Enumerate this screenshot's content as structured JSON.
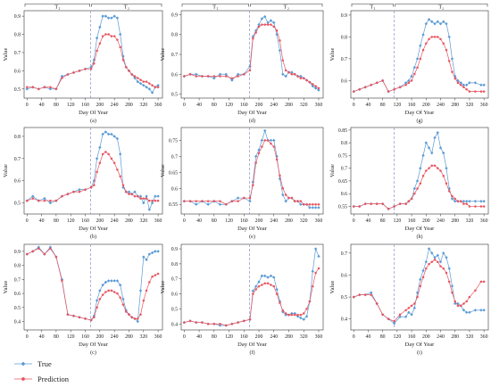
{
  "legend": {
    "true_label": "True",
    "prediction_label": "Prediction"
  },
  "colors": {
    "true": "#5b9bd5",
    "prediction": "#e8545f",
    "divider": "#8a93c8",
    "axis": "#333333"
  },
  "common": {
    "xlabel": "Day Of Year",
    "ylabel": "Value",
    "xticks": [
      0,
      40,
      80,
      120,
      160,
      200,
      240,
      280,
      320,
      360
    ],
    "xlim": [
      -8,
      372
    ],
    "phase1_label": "T₁",
    "phase2_label": "T₂"
  },
  "chart_data": [
    {
      "type": "line",
      "caption": "(a)",
      "divider": 175,
      "ylim": [
        0.45,
        0.93
      ],
      "yticks": [
        0.5,
        0.6,
        0.7,
        0.8,
        0.9
      ],
      "x": [
        0,
        16,
        32,
        48,
        64,
        80,
        96,
        112,
        128,
        144,
        160,
        176,
        184,
        192,
        200,
        208,
        216,
        224,
        232,
        240,
        248,
        256,
        264,
        272,
        280,
        288,
        296,
        304,
        312,
        320,
        328,
        336,
        344,
        352,
        360
      ],
      "series": [
        {
          "name": "True",
          "values": [
            0.5,
            0.51,
            0.5,
            0.51,
            0.5,
            0.5,
            0.57,
            0.58,
            0.59,
            0.6,
            0.61,
            0.62,
            0.66,
            0.78,
            0.84,
            0.9,
            0.9,
            0.89,
            0.89,
            0.9,
            0.89,
            0.8,
            0.68,
            0.62,
            0.6,
            0.58,
            0.56,
            0.54,
            0.53,
            0.52,
            0.51,
            0.5,
            0.48,
            0.51,
            0.52
          ]
        },
        {
          "name": "Prediction",
          "values": [
            0.51,
            0.51,
            0.5,
            0.51,
            0.51,
            0.5,
            0.56,
            0.58,
            0.59,
            0.6,
            0.61,
            0.61,
            0.64,
            0.71,
            0.75,
            0.79,
            0.8,
            0.8,
            0.79,
            0.79,
            0.77,
            0.73,
            0.66,
            0.62,
            0.6,
            0.58,
            0.57,
            0.56,
            0.55,
            0.54,
            0.54,
            0.53,
            0.52,
            0.51,
            0.51
          ]
        }
      ]
    },
    {
      "type": "line",
      "caption": "(d)",
      "divider": 175,
      "ylim": [
        0.48,
        0.92
      ],
      "yticks": [
        0.5,
        0.6,
        0.7,
        0.8,
        0.9
      ],
      "x": [
        0,
        16,
        32,
        48,
        64,
        80,
        96,
        112,
        128,
        144,
        160,
        176,
        184,
        192,
        200,
        208,
        216,
        224,
        232,
        240,
        248,
        256,
        264,
        272,
        280,
        288,
        296,
        304,
        312,
        320,
        328,
        336,
        344,
        352,
        360
      ],
      "series": [
        {
          "name": "True",
          "values": [
            0.59,
            0.6,
            0.6,
            0.59,
            0.59,
            0.58,
            0.6,
            0.6,
            0.57,
            0.6,
            0.6,
            0.64,
            0.79,
            0.82,
            0.85,
            0.88,
            0.89,
            0.86,
            0.87,
            0.86,
            0.8,
            0.72,
            0.6,
            0.59,
            0.61,
            0.61,
            0.6,
            0.59,
            0.59,
            0.58,
            0.57,
            0.56,
            0.54,
            0.53,
            0.52
          ]
        },
        {
          "name": "Prediction",
          "values": [
            0.59,
            0.6,
            0.59,
            0.59,
            0.59,
            0.59,
            0.59,
            0.59,
            0.58,
            0.59,
            0.6,
            0.62,
            0.78,
            0.81,
            0.84,
            0.85,
            0.85,
            0.85,
            0.85,
            0.84,
            0.82,
            0.77,
            0.67,
            0.62,
            0.61,
            0.6,
            0.6,
            0.59,
            0.58,
            0.58,
            0.57,
            0.56,
            0.55,
            0.54,
            0.53
          ]
        }
      ]
    },
    {
      "type": "line",
      "caption": "(g)",
      "divider": 112,
      "ylim": [
        0.52,
        0.92
      ],
      "yticks": [
        0.6,
        0.7,
        0.8,
        0.9
      ],
      "x": [
        0,
        16,
        32,
        48,
        64,
        80,
        96,
        112,
        128,
        144,
        152,
        160,
        168,
        176,
        184,
        192,
        200,
        208,
        216,
        224,
        232,
        240,
        248,
        256,
        264,
        272,
        280,
        288,
        296,
        304,
        312,
        320,
        336,
        352,
        360
      ],
      "series": [
        {
          "name": "True",
          "values": [
            0.55,
            0.56,
            0.57,
            0.58,
            0.59,
            0.6,
            0.55,
            0.56,
            0.57,
            0.59,
            0.6,
            0.62,
            0.66,
            0.7,
            0.76,
            0.81,
            0.86,
            0.88,
            0.87,
            0.86,
            0.87,
            0.86,
            0.87,
            0.86,
            0.8,
            0.7,
            0.62,
            0.6,
            0.59,
            0.58,
            0.58,
            0.59,
            0.59,
            0.58,
            0.58
          ]
        },
        {
          "name": "Prediction",
          "values": [
            0.55,
            0.56,
            0.57,
            0.58,
            0.59,
            0.6,
            0.55,
            0.56,
            0.57,
            0.58,
            0.59,
            0.6,
            0.63,
            0.66,
            0.7,
            0.74,
            0.77,
            0.79,
            0.8,
            0.8,
            0.8,
            0.79,
            0.77,
            0.74,
            0.69,
            0.64,
            0.61,
            0.59,
            0.58,
            0.57,
            0.56,
            0.55,
            0.55,
            0.55,
            0.55
          ]
        }
      ]
    },
    {
      "type": "line",
      "caption": "(b)",
      "divider": 175,
      "ylim": [
        0.45,
        0.84
      ],
      "yticks": [
        0.5,
        0.6,
        0.7,
        0.8
      ],
      "x": [
        0,
        16,
        32,
        48,
        64,
        80,
        96,
        112,
        128,
        144,
        160,
        176,
        184,
        192,
        200,
        208,
        216,
        224,
        232,
        240,
        248,
        256,
        264,
        272,
        280,
        288,
        296,
        304,
        312,
        320,
        328,
        336,
        344,
        352,
        360
      ],
      "series": [
        {
          "name": "True",
          "values": [
            0.51,
            0.53,
            0.51,
            0.52,
            0.5,
            0.51,
            0.53,
            0.54,
            0.55,
            0.56,
            0.56,
            0.57,
            0.6,
            0.7,
            0.75,
            0.81,
            0.82,
            0.81,
            0.81,
            0.8,
            0.79,
            0.72,
            0.57,
            0.55,
            0.55,
            0.54,
            0.55,
            0.53,
            0.53,
            0.5,
            0.53,
            0.47,
            0.5,
            0.53,
            0.53
          ]
        },
        {
          "name": "Prediction",
          "values": [
            0.51,
            0.52,
            0.51,
            0.51,
            0.51,
            0.51,
            0.53,
            0.54,
            0.55,
            0.55,
            0.56,
            0.57,
            0.58,
            0.64,
            0.68,
            0.72,
            0.73,
            0.72,
            0.7,
            0.68,
            0.65,
            0.62,
            0.58,
            0.55,
            0.54,
            0.54,
            0.53,
            0.53,
            0.52,
            0.52,
            0.52,
            0.51,
            0.51,
            0.51,
            0.51
          ]
        }
      ]
    },
    {
      "type": "line",
      "caption": "(e)",
      "divider": 175,
      "ylim": [
        0.52,
        0.79
      ],
      "yticks": [
        0.55,
        0.6,
        0.65,
        0.7,
        0.75
      ],
      "x": [
        0,
        16,
        32,
        48,
        64,
        80,
        96,
        112,
        128,
        144,
        160,
        176,
        184,
        192,
        200,
        208,
        216,
        224,
        232,
        240,
        248,
        256,
        264,
        272,
        280,
        288,
        296,
        304,
        312,
        320,
        328,
        336,
        344,
        352,
        360
      ],
      "series": [
        {
          "name": "True",
          "values": [
            0.56,
            0.56,
            0.55,
            0.56,
            0.55,
            0.56,
            0.55,
            0.55,
            0.56,
            0.57,
            0.57,
            0.56,
            0.62,
            0.7,
            0.72,
            0.75,
            0.78,
            0.75,
            0.75,
            0.75,
            0.7,
            0.63,
            0.58,
            0.56,
            0.57,
            0.57,
            0.56,
            0.56,
            0.55,
            0.55,
            0.55,
            0.54,
            0.54,
            0.54,
            0.54
          ]
        },
        {
          "name": "Prediction",
          "values": [
            0.56,
            0.56,
            0.56,
            0.56,
            0.56,
            0.56,
            0.56,
            0.55,
            0.56,
            0.56,
            0.57,
            0.57,
            0.61,
            0.68,
            0.71,
            0.73,
            0.75,
            0.75,
            0.74,
            0.73,
            0.69,
            0.64,
            0.6,
            0.58,
            0.57,
            0.57,
            0.56,
            0.56,
            0.56,
            0.55,
            0.55,
            0.55,
            0.55,
            0.55,
            0.55
          ]
        }
      ]
    },
    {
      "type": "line",
      "caption": "(h)",
      "divider": 112,
      "ylim": [
        0.52,
        0.86
      ],
      "yticks": [
        0.55,
        0.6,
        0.65,
        0.7,
        0.75,
        0.8,
        0.85
      ],
      "x": [
        0,
        16,
        32,
        48,
        64,
        80,
        96,
        112,
        128,
        144,
        152,
        160,
        168,
        176,
        184,
        192,
        200,
        208,
        216,
        224,
        232,
        240,
        248,
        256,
        264,
        272,
        280,
        288,
        296,
        304,
        312,
        320,
        336,
        352,
        360
      ],
      "series": [
        {
          "name": "True",
          "values": [
            0.55,
            0.55,
            0.56,
            0.56,
            0.56,
            0.56,
            0.54,
            0.55,
            0.56,
            0.56,
            0.57,
            0.58,
            0.62,
            0.65,
            0.7,
            0.75,
            0.8,
            0.78,
            0.76,
            0.82,
            0.84,
            0.78,
            0.76,
            0.7,
            0.62,
            0.58,
            0.57,
            0.57,
            0.57,
            0.57,
            0.57,
            0.57,
            0.57,
            0.57,
            0.57
          ]
        },
        {
          "name": "Prediction",
          "values": [
            0.55,
            0.55,
            0.56,
            0.56,
            0.56,
            0.56,
            0.54,
            0.55,
            0.56,
            0.56,
            0.57,
            0.58,
            0.6,
            0.62,
            0.64,
            0.67,
            0.69,
            0.7,
            0.71,
            0.71,
            0.7,
            0.69,
            0.67,
            0.64,
            0.61,
            0.59,
            0.58,
            0.57,
            0.57,
            0.56,
            0.56,
            0.55,
            0.55,
            0.55,
            0.55
          ]
        }
      ]
    },
    {
      "type": "line",
      "caption": "(c)",
      "divider": 175,
      "ylim": [
        0.34,
        0.95
      ],
      "yticks": [
        0.4,
        0.5,
        0.6,
        0.7,
        0.8,
        0.9
      ],
      "x": [
        0,
        16,
        32,
        48,
        64,
        80,
        96,
        112,
        128,
        144,
        160,
        176,
        184,
        192,
        200,
        208,
        216,
        224,
        232,
        240,
        248,
        256,
        264,
        272,
        280,
        288,
        296,
        304,
        312,
        320,
        328,
        336,
        344,
        352,
        360
      ],
      "series": [
        {
          "name": "True",
          "values": [
            0.88,
            0.9,
            0.93,
            0.88,
            0.93,
            0.86,
            0.7,
            0.45,
            0.44,
            0.43,
            0.42,
            0.41,
            0.44,
            0.55,
            0.62,
            0.66,
            0.68,
            0.69,
            0.69,
            0.69,
            0.69,
            0.66,
            0.56,
            0.48,
            0.45,
            0.43,
            0.42,
            0.4,
            0.62,
            0.86,
            0.84,
            0.88,
            0.89,
            0.9,
            0.9
          ]
        },
        {
          "name": "Prediction",
          "values": [
            0.88,
            0.9,
            0.92,
            0.88,
            0.92,
            0.86,
            0.69,
            0.45,
            0.44,
            0.43,
            0.42,
            0.41,
            0.43,
            0.5,
            0.56,
            0.59,
            0.61,
            0.62,
            0.62,
            0.61,
            0.6,
            0.57,
            0.52,
            0.47,
            0.45,
            0.43,
            0.42,
            0.42,
            0.45,
            0.55,
            0.62,
            0.68,
            0.72,
            0.73,
            0.74
          ]
        }
      ]
    },
    {
      "type": "line",
      "caption": "(f)",
      "divider": 175,
      "ylim": [
        0.36,
        0.93
      ],
      "yticks": [
        0.4,
        0.5,
        0.6,
        0.7,
        0.8,
        0.9
      ],
      "x": [
        0,
        16,
        32,
        48,
        64,
        80,
        96,
        112,
        128,
        144,
        160,
        176,
        184,
        192,
        200,
        208,
        216,
        224,
        232,
        240,
        248,
        256,
        264,
        272,
        280,
        288,
        296,
        304,
        312,
        320,
        328,
        336,
        344,
        352,
        360
      ],
      "series": [
        {
          "name": "True",
          "values": [
            0.41,
            0.42,
            0.41,
            0.41,
            0.4,
            0.4,
            0.39,
            0.39,
            0.4,
            0.41,
            0.42,
            0.43,
            0.62,
            0.65,
            0.68,
            0.72,
            0.72,
            0.71,
            0.72,
            0.71,
            0.63,
            0.55,
            0.48,
            0.46,
            0.46,
            0.47,
            0.47,
            0.45,
            0.44,
            0.43,
            0.45,
            0.55,
            0.75,
            0.9,
            0.85
          ]
        },
        {
          "name": "Prediction",
          "values": [
            0.41,
            0.42,
            0.41,
            0.41,
            0.4,
            0.4,
            0.4,
            0.39,
            0.4,
            0.41,
            0.42,
            0.43,
            0.6,
            0.63,
            0.65,
            0.66,
            0.67,
            0.67,
            0.66,
            0.65,
            0.6,
            0.54,
            0.49,
            0.47,
            0.46,
            0.46,
            0.46,
            0.46,
            0.46,
            0.47,
            0.5,
            0.55,
            0.65,
            0.74,
            0.77
          ]
        }
      ]
    },
    {
      "type": "line",
      "caption": "(i)",
      "divider": 112,
      "ylim": [
        0.35,
        0.74
      ],
      "yticks": [
        0.4,
        0.5,
        0.6,
        0.7
      ],
      "x": [
        0,
        16,
        32,
        48,
        64,
        80,
        96,
        112,
        128,
        144,
        152,
        160,
        168,
        176,
        184,
        192,
        200,
        208,
        216,
        224,
        232,
        240,
        248,
        256,
        264,
        272,
        280,
        288,
        296,
        304,
        312,
        320,
        336,
        352,
        360
      ],
      "series": [
        {
          "name": "True",
          "values": [
            0.5,
            0.51,
            0.51,
            0.52,
            0.47,
            0.42,
            0.4,
            0.38,
            0.41,
            0.41,
            0.43,
            0.42,
            0.45,
            0.52,
            0.58,
            0.62,
            0.66,
            0.72,
            0.7,
            0.68,
            0.69,
            0.66,
            0.7,
            0.68,
            0.63,
            0.55,
            0.47,
            0.47,
            0.46,
            0.44,
            0.43,
            0.43,
            0.44,
            0.44,
            0.44
          ]
        },
        {
          "name": "Prediction",
          "values": [
            0.5,
            0.51,
            0.51,
            0.51,
            0.47,
            0.42,
            0.4,
            0.39,
            0.42,
            0.44,
            0.45,
            0.46,
            0.47,
            0.5,
            0.55,
            0.59,
            0.63,
            0.65,
            0.66,
            0.67,
            0.66,
            0.64,
            0.63,
            0.61,
            0.57,
            0.52,
            0.48,
            0.46,
            0.46,
            0.47,
            0.48,
            0.5,
            0.53,
            0.57,
            0.57
          ]
        }
      ]
    }
  ]
}
